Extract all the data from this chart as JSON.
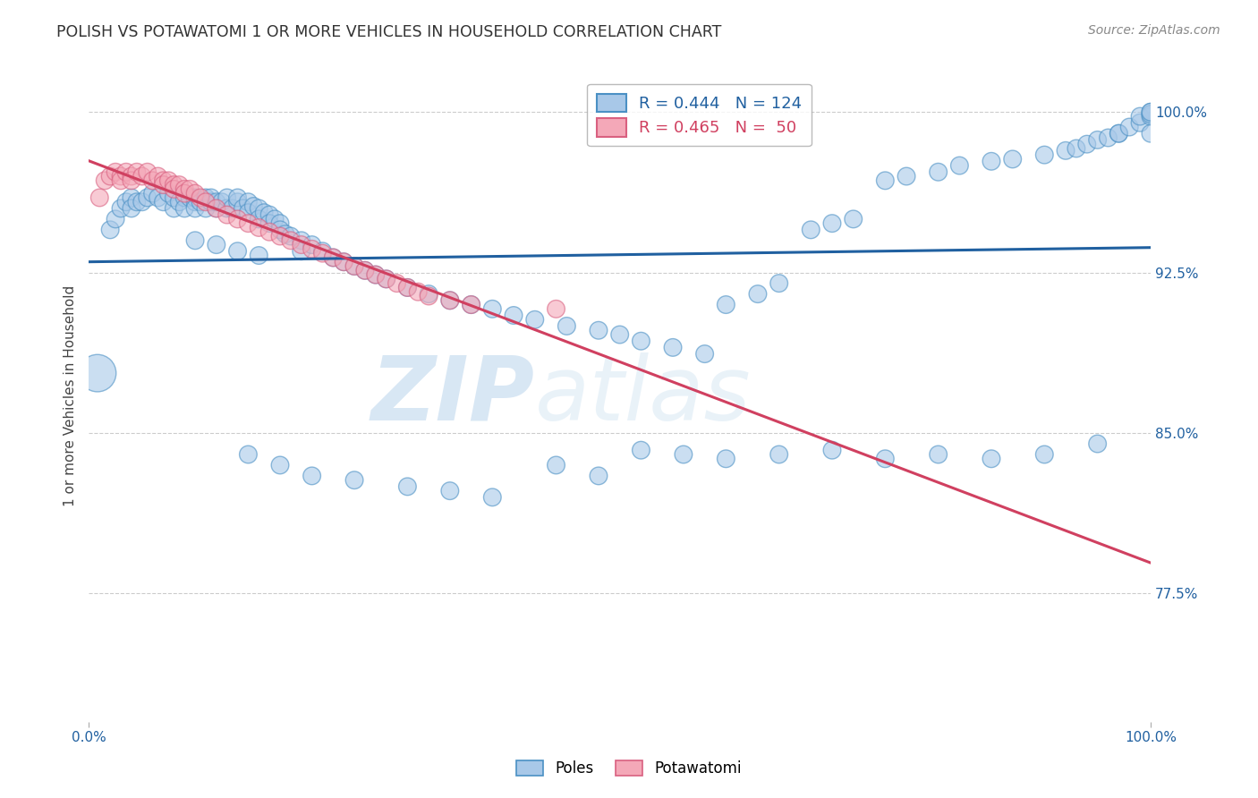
{
  "title": "POLISH VS POTAWATOMI 1 OR MORE VEHICLES IN HOUSEHOLD CORRELATION CHART",
  "source": "Source: ZipAtlas.com",
  "ylabel": "1 or more Vehicles in Household",
  "ytick_labels": [
    "100.0%",
    "92.5%",
    "85.0%",
    "77.5%"
  ],
  "ytick_values": [
    1.0,
    0.925,
    0.85,
    0.775
  ],
  "xlim": [
    0.0,
    1.0
  ],
  "ylim": [
    0.715,
    1.02
  ],
  "legend_blue_r": "R = 0.444",
  "legend_blue_n": "N = 124",
  "legend_pink_r": "R = 0.465",
  "legend_pink_n": "N =  50",
  "blue_color": "#a8c8e8",
  "pink_color": "#f4a8b8",
  "blue_edge_color": "#4a90c4",
  "pink_edge_color": "#d96080",
  "blue_line_color": "#2060a0",
  "pink_line_color": "#d04060",
  "watermark_zip": "ZIP",
  "watermark_atlas": "atlas",
  "poles_x": [
    0.008,
    0.02,
    0.025,
    0.03,
    0.035,
    0.04,
    0.04,
    0.045,
    0.05,
    0.055,
    0.06,
    0.065,
    0.07,
    0.075,
    0.08,
    0.08,
    0.085,
    0.09,
    0.09,
    0.095,
    0.1,
    0.1,
    0.1,
    0.105,
    0.11,
    0.11,
    0.115,
    0.115,
    0.12,
    0.12,
    0.125,
    0.13,
    0.13,
    0.135,
    0.14,
    0.14,
    0.145,
    0.15,
    0.15,
    0.155,
    0.16,
    0.16,
    0.165,
    0.17,
    0.17,
    0.175,
    0.18,
    0.18,
    0.185,
    0.19,
    0.2,
    0.2,
    0.21,
    0.22,
    0.23,
    0.24,
    0.25,
    0.26,
    0.27,
    0.28,
    0.3,
    0.32,
    0.34,
    0.36,
    0.38,
    0.4,
    0.42,
    0.45,
    0.48,
    0.5,
    0.52,
    0.55,
    0.58,
    0.6,
    0.63,
    0.65,
    0.68,
    0.7,
    0.72,
    0.75,
    0.77,
    0.8,
    0.82,
    0.85,
    0.87,
    0.9,
    0.92,
    0.93,
    0.94,
    0.95,
    0.96,
    0.97,
    0.97,
    0.98,
    0.99,
    0.99,
    1.0,
    1.0,
    1.0,
    1.0,
    0.15,
    0.18,
    0.21,
    0.25,
    0.3,
    0.34,
    0.38,
    0.44,
    0.48,
    0.52,
    0.56,
    0.6,
    0.65,
    0.7,
    0.75,
    0.8,
    0.85,
    0.9,
    0.95,
    1.0,
    0.1,
    0.12,
    0.14,
    0.16
  ],
  "poles_y": [
    0.878,
    0.945,
    0.95,
    0.955,
    0.958,
    0.96,
    0.955,
    0.958,
    0.958,
    0.96,
    0.962,
    0.96,
    0.958,
    0.962,
    0.955,
    0.96,
    0.958,
    0.96,
    0.955,
    0.96,
    0.958,
    0.96,
    0.955,
    0.958,
    0.96,
    0.955,
    0.958,
    0.96,
    0.955,
    0.958,
    0.958,
    0.955,
    0.96,
    0.955,
    0.958,
    0.96,
    0.955,
    0.958,
    0.953,
    0.956,
    0.955,
    0.95,
    0.953,
    0.952,
    0.948,
    0.95,
    0.948,
    0.945,
    0.943,
    0.942,
    0.94,
    0.935,
    0.938,
    0.935,
    0.932,
    0.93,
    0.928,
    0.926,
    0.924,
    0.922,
    0.918,
    0.915,
    0.912,
    0.91,
    0.908,
    0.905,
    0.903,
    0.9,
    0.898,
    0.896,
    0.893,
    0.89,
    0.887,
    0.91,
    0.915,
    0.92,
    0.945,
    0.948,
    0.95,
    0.968,
    0.97,
    0.972,
    0.975,
    0.977,
    0.978,
    0.98,
    0.982,
    0.983,
    0.985,
    0.987,
    0.988,
    0.99,
    0.99,
    0.993,
    0.995,
    0.998,
    0.998,
    1.0,
    0.999,
    1.0,
    0.84,
    0.835,
    0.83,
    0.828,
    0.825,
    0.823,
    0.82,
    0.835,
    0.83,
    0.842,
    0.84,
    0.838,
    0.84,
    0.842,
    0.838,
    0.84,
    0.838,
    0.84,
    0.845,
    0.99,
    0.94,
    0.938,
    0.935,
    0.933
  ],
  "poles_size": [
    900,
    200,
    200,
    200,
    200,
    200,
    200,
    200,
    200,
    200,
    200,
    200,
    200,
    200,
    200,
    200,
    200,
    200,
    200,
    200,
    200,
    200,
    200,
    200,
    200,
    200,
    200,
    200,
    200,
    200,
    200,
    200,
    200,
    200,
    200,
    200,
    200,
    200,
    200,
    200,
    200,
    200,
    200,
    200,
    200,
    200,
    200,
    200,
    200,
    200,
    200,
    200,
    200,
    200,
    200,
    200,
    200,
    200,
    200,
    200,
    200,
    200,
    200,
    200,
    200,
    200,
    200,
    200,
    200,
    200,
    200,
    200,
    200,
    200,
    200,
    200,
    200,
    200,
    200,
    200,
    200,
    200,
    200,
    200,
    200,
    200,
    200,
    200,
    200,
    200,
    200,
    200,
    200,
    200,
    200,
    200,
    200,
    200,
    200,
    200,
    200,
    200,
    200,
    200,
    200,
    200,
    200,
    200,
    200,
    200,
    200,
    200,
    200,
    200,
    200,
    200,
    200,
    200,
    200,
    200,
    200,
    200,
    200,
    200
  ],
  "potawatomi_x": [
    0.01,
    0.015,
    0.02,
    0.025,
    0.03,
    0.03,
    0.035,
    0.04,
    0.04,
    0.045,
    0.05,
    0.055,
    0.06,
    0.065,
    0.07,
    0.07,
    0.075,
    0.08,
    0.08,
    0.085,
    0.09,
    0.09,
    0.095,
    0.1,
    0.105,
    0.11,
    0.12,
    0.13,
    0.14,
    0.15,
    0.16,
    0.17,
    0.18,
    0.19,
    0.2,
    0.21,
    0.22,
    0.23,
    0.24,
    0.25,
    0.26,
    0.27,
    0.28,
    0.29,
    0.3,
    0.31,
    0.32,
    0.34,
    0.36,
    0.44
  ],
  "potawatomi_y": [
    0.96,
    0.968,
    0.97,
    0.972,
    0.97,
    0.968,
    0.972,
    0.97,
    0.968,
    0.972,
    0.97,
    0.972,
    0.968,
    0.97,
    0.968,
    0.966,
    0.968,
    0.966,
    0.964,
    0.966,
    0.964,
    0.962,
    0.964,
    0.962,
    0.96,
    0.958,
    0.955,
    0.952,
    0.95,
    0.948,
    0.946,
    0.944,
    0.942,
    0.94,
    0.938,
    0.936,
    0.934,
    0.932,
    0.93,
    0.928,
    0.926,
    0.924,
    0.922,
    0.92,
    0.918,
    0.916,
    0.914,
    0.912,
    0.91,
    0.908
  ],
  "potawatomi_size": [
    200,
    200,
    200,
    200,
    200,
    200,
    200,
    200,
    200,
    200,
    200,
    200,
    200,
    200,
    200,
    200,
    200,
    200,
    200,
    200,
    200,
    200,
    200,
    200,
    200,
    200,
    200,
    200,
    200,
    200,
    200,
    200,
    200,
    200,
    200,
    200,
    200,
    200,
    200,
    200,
    200,
    200,
    200,
    200,
    200,
    200,
    200,
    200,
    200,
    200
  ]
}
